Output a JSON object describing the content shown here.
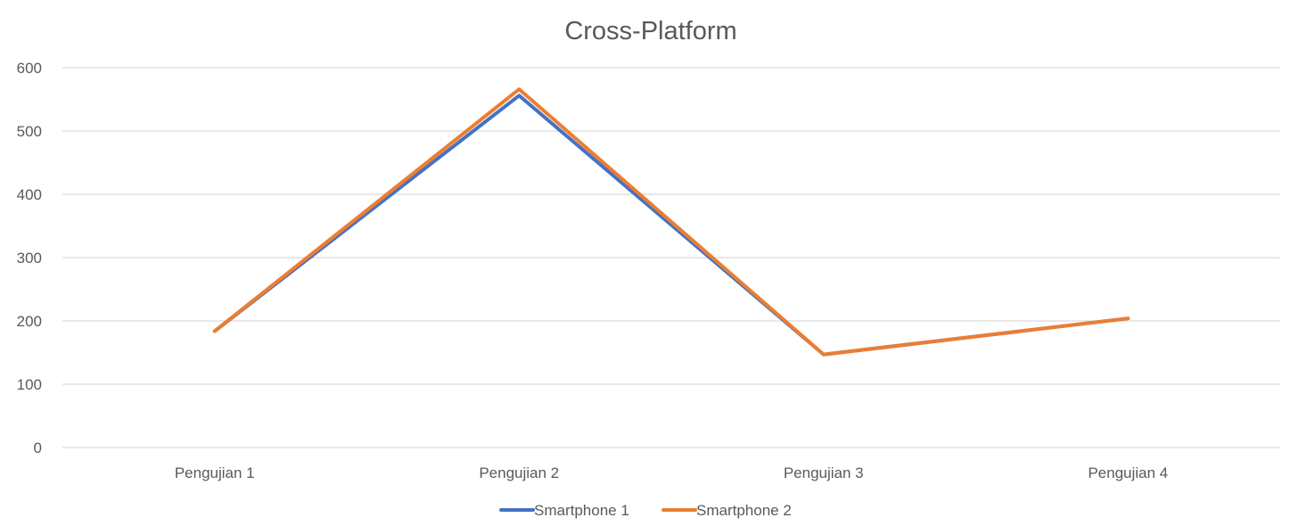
{
  "chart_data": {
    "type": "line",
    "title": "Cross-Platform",
    "xlabel": "",
    "ylabel": "",
    "categories": [
      "Pengujian 1",
      "Pengujian 2",
      "Pengujian 3",
      "Pengujian 4"
    ],
    "ylim": [
      0,
      600
    ],
    "yticks": [
      0,
      100,
      200,
      300,
      400,
      500,
      600
    ],
    "grid": true,
    "legend_position": "bottom",
    "series": [
      {
        "name": "Smartphone 1",
        "color": "#4472C4",
        "values": [
          184,
          556,
          147,
          204
        ]
      },
      {
        "name": "Smartphone 2",
        "color": "#ED7D31",
        "values": [
          184,
          566,
          147,
          204
        ]
      }
    ]
  }
}
